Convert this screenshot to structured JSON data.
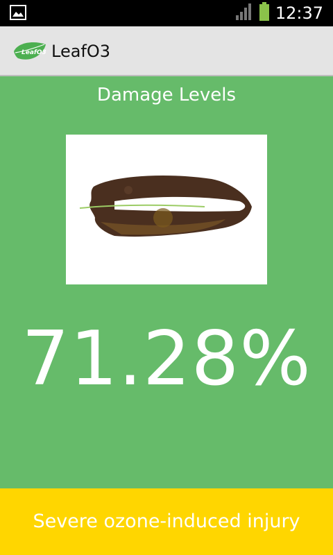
{
  "status_bar": {
    "time": "12:37",
    "icons": [
      "image-notification-icon",
      "signal-icon",
      "battery-icon"
    ]
  },
  "action_bar": {
    "logo_text": "LeafO3",
    "title": "LeafO3"
  },
  "main": {
    "section_title": "Damage Levels",
    "damage_value": "71.28%",
    "damage_fraction": 0.7128
  },
  "result": {
    "label": "Severe ozone-induced injury"
  },
  "colors": {
    "content_bg": "#66bb6a",
    "result_bg": "#ffd600",
    "action_bar_bg": "#e4e4e4",
    "status_bar_bg": "#000000"
  }
}
